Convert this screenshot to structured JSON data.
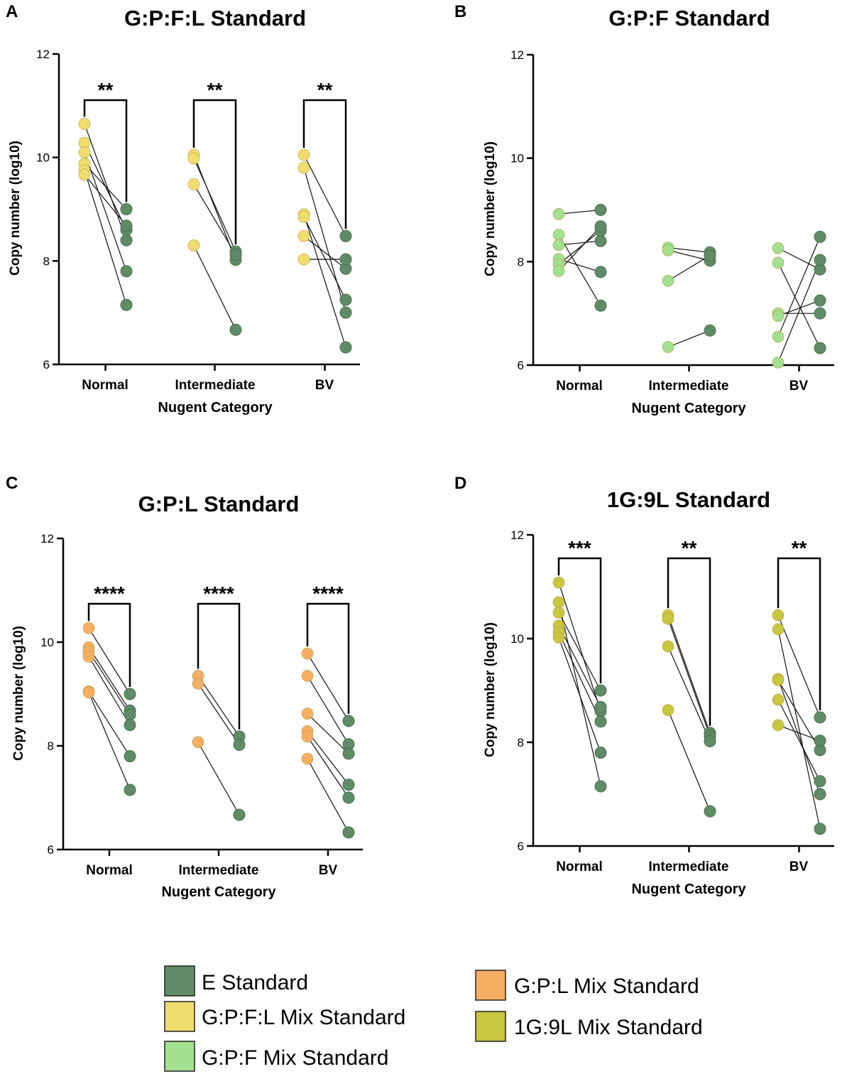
{
  "colors": {
    "e_standard": "#5f8c66",
    "gpfl": "#f0dd6e",
    "gpf": "#a3e08f",
    "gpl": "#f6ae63",
    "g9l": "#c9c73e"
  },
  "legend": [
    {
      "label": "E Standard",
      "color_key": "e_standard"
    },
    {
      "label": "G:P:F:L Mix Standard",
      "color_key": "gpfl"
    },
    {
      "label": "G:P:F Mix Standard",
      "color_key": "gpf"
    },
    {
      "label": "G:P:L Mix Standard",
      "color_key": "gpl"
    },
    {
      "label": "1G:9L Mix Standard",
      "color_key": "g9l"
    }
  ],
  "chart_data": [
    {
      "type": "scatter",
      "panel": "A",
      "title": "G:P:F:L Standard",
      "xlabel": "Nugent Category",
      "ylabel": "Copy number (log10)",
      "ylim": [
        6,
        12
      ],
      "yticks": [
        "6",
        "8",
        "10",
        "12"
      ],
      "categories": [
        "Normal",
        "Intermediate",
        "BV"
      ],
      "mix_color_key": "gpfl",
      "groups": [
        {
          "mix": [
            10.65,
            10.28,
            10.1,
            9.88,
            9.75,
            9.67
          ],
          "e": [
            8.4,
            8.6,
            7.8,
            9.0,
            7.15,
            8.68
          ],
          "sig": "**"
        },
        {
          "mix": [
            10.05,
            9.98,
            9.48,
            8.3
          ],
          "e": [
            8.02,
            8.18,
            8.12,
            6.67
          ],
          "sig": "**"
        },
        {
          "mix": [
            10.05,
            9.8,
            8.9,
            8.85,
            8.48,
            8.03
          ],
          "e": [
            8.48,
            7.0,
            6.33,
            7.25,
            7.85,
            8.03
          ],
          "sig": "**"
        }
      ]
    },
    {
      "type": "scatter",
      "panel": "B",
      "title": "G:P:F Standard",
      "xlabel": "Nugent Category",
      "ylabel": "Copy number (log10)",
      "ylim": [
        6,
        12
      ],
      "yticks": [
        "6",
        "8",
        "10",
        "12"
      ],
      "categories": [
        "Normal",
        "Intermediate",
        "BV"
      ],
      "mix_color_key": "gpf",
      "groups": [
        {
          "mix": [
            8.92,
            8.52,
            8.32,
            8.05,
            7.95,
            7.82
          ],
          "e": [
            9.0,
            7.15,
            8.4,
            7.8,
            8.6,
            8.68
          ],
          "sig": ""
        },
        {
          "mix": [
            8.27,
            8.22,
            7.63,
            6.35
          ],
          "e": [
            8.18,
            8.02,
            8.12,
            6.67
          ],
          "sig": ""
        },
        {
          "mix": [
            8.26,
            7.98,
            7.0,
            6.95,
            6.55,
            6.05
          ],
          "e": [
            7.85,
            6.33,
            7.0,
            7.25,
            8.48,
            8.03
          ],
          "sig": ""
        }
      ]
    },
    {
      "type": "scatter",
      "panel": "C",
      "title": "G:P:L Standard",
      "xlabel": "Nugent Category",
      "ylabel": "Copy number (log10)",
      "ylim": [
        6,
        12
      ],
      "yticks": [
        "6",
        "8",
        "10",
        "12"
      ],
      "categories": [
        "Normal",
        "Intermediate",
        "BV"
      ],
      "mix_color_key": "gpl",
      "groups": [
        {
          "mix": [
            10.27,
            9.9,
            9.82,
            9.72,
            9.05,
            9.03
          ],
          "e": [
            9.0,
            8.68,
            8.6,
            8.4,
            7.8,
            7.15
          ],
          "sig": "****"
        },
        {
          "mix": [
            9.35,
            9.2,
            8.07
          ],
          "e": [
            8.18,
            8.02,
            6.67
          ],
          "sig": "****"
        },
        {
          "mix": [
            9.78,
            9.35,
            8.62,
            8.28,
            8.18,
            7.75
          ],
          "e": [
            8.48,
            8.03,
            7.85,
            7.25,
            7.0,
            6.33
          ],
          "sig": "****"
        }
      ]
    },
    {
      "type": "scatter",
      "panel": "D",
      "title": "1G:9L Standard",
      "xlabel": "Nugent Category",
      "ylabel": "Copy number (log10)",
      "ylim": [
        6,
        12
      ],
      "yticks": [
        "6",
        "8",
        "10",
        "12"
      ],
      "categories": [
        "Normal",
        "Intermediate",
        "BV"
      ],
      "mix_color_key": "g9l",
      "groups": [
        {
          "mix": [
            11.08,
            10.7,
            10.5,
            10.25,
            10.12,
            10.02
          ],
          "e": [
            8.6,
            7.15,
            9.0,
            8.68,
            8.4,
            7.8
          ],
          "sig": "***"
        },
        {
          "mix": [
            10.45,
            10.38,
            9.85,
            8.62
          ],
          "e": [
            8.18,
            8.12,
            8.02,
            6.67
          ],
          "sig": "**"
        },
        {
          "mix": [
            10.45,
            10.18,
            9.22,
            9.2,
            8.82,
            8.33
          ],
          "e": [
            8.48,
            6.33,
            7.0,
            7.85,
            7.25,
            8.03
          ],
          "sig": "**"
        }
      ]
    }
  ]
}
